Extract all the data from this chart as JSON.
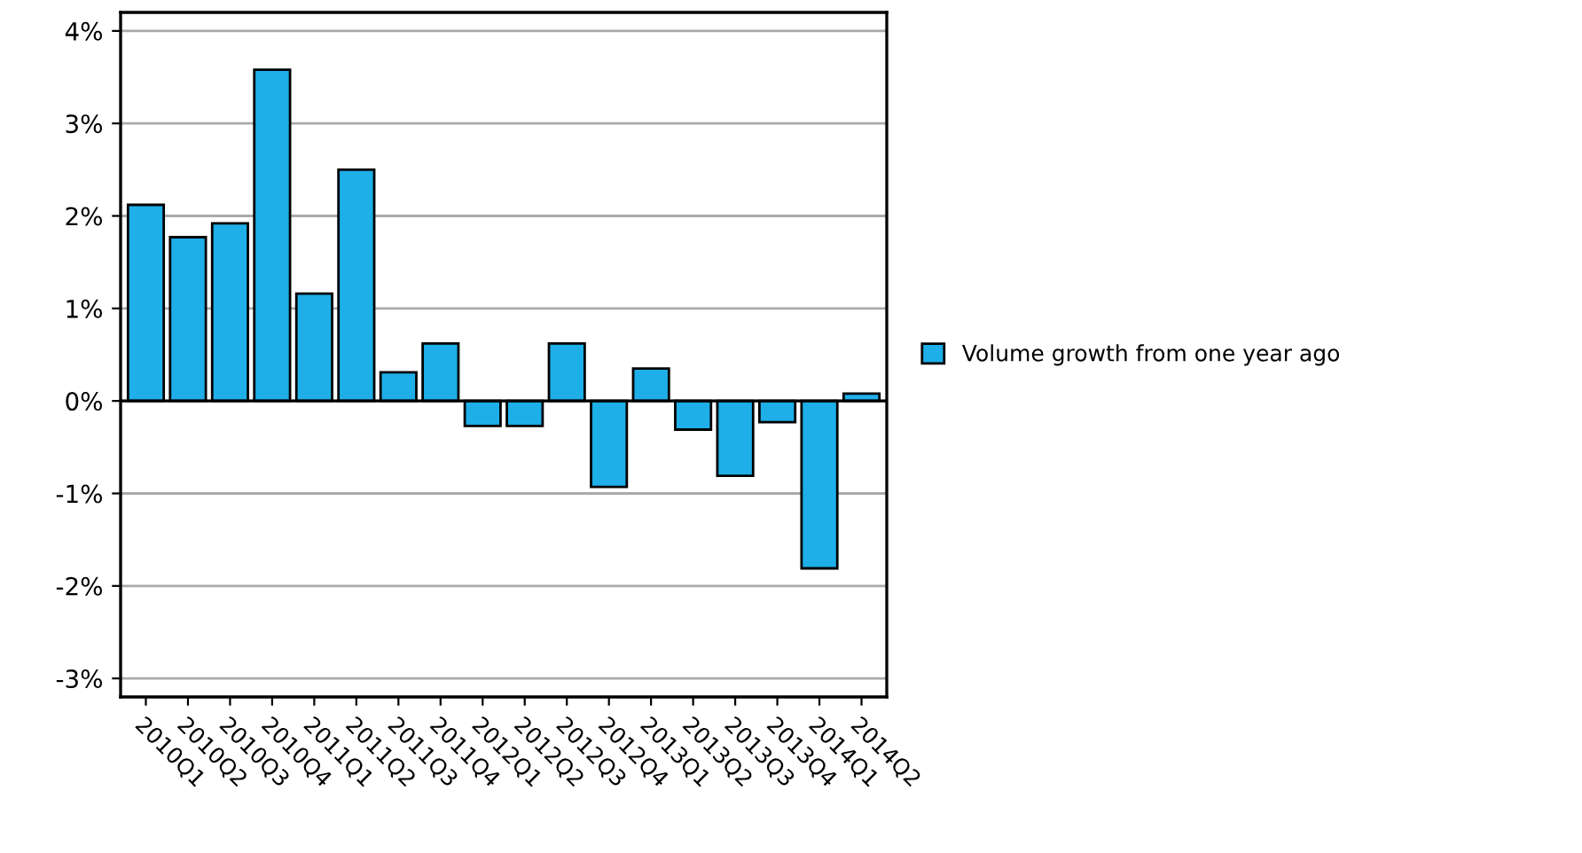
{
  "chart_data": {
    "type": "bar",
    "categories": [
      "2010Q1",
      "2010Q2",
      "2010Q3",
      "2010Q4",
      "2011Q1",
      "2011Q2",
      "2011Q3",
      "2011Q4",
      "2012Q1",
      "2012Q2",
      "2012Q3",
      "2012Q4",
      "2013Q1",
      "2013Q2",
      "2013Q3",
      "2013Q4",
      "2014Q1",
      "2014Q2"
    ],
    "series": [
      {
        "name": "Volume growth from one year ago",
        "color": "#1eaee8",
        "values": [
          2.12,
          1.77,
          1.92,
          3.58,
          1.16,
          2.5,
          0.31,
          0.62,
          -0.27,
          -0.27,
          0.62,
          -0.93,
          0.35,
          -0.31,
          -0.81,
          -0.23,
          -1.81,
          0.08
        ]
      }
    ],
    "ylim": [
      -3.2,
      4.2
    ],
    "yticks": [
      {
        "value": -3,
        "label": "-3%"
      },
      {
        "value": -2,
        "label": "-2%"
      },
      {
        "value": -1,
        "label": "-1%"
      },
      {
        "value": 0,
        "label": "0%"
      },
      {
        "value": 1,
        "label": "1%"
      },
      {
        "value": 2,
        "label": "2%"
      },
      {
        "value": 3,
        "label": "3%"
      },
      {
        "value": 4,
        "label": "4%"
      }
    ],
    "grid": "y",
    "legend": "right"
  }
}
